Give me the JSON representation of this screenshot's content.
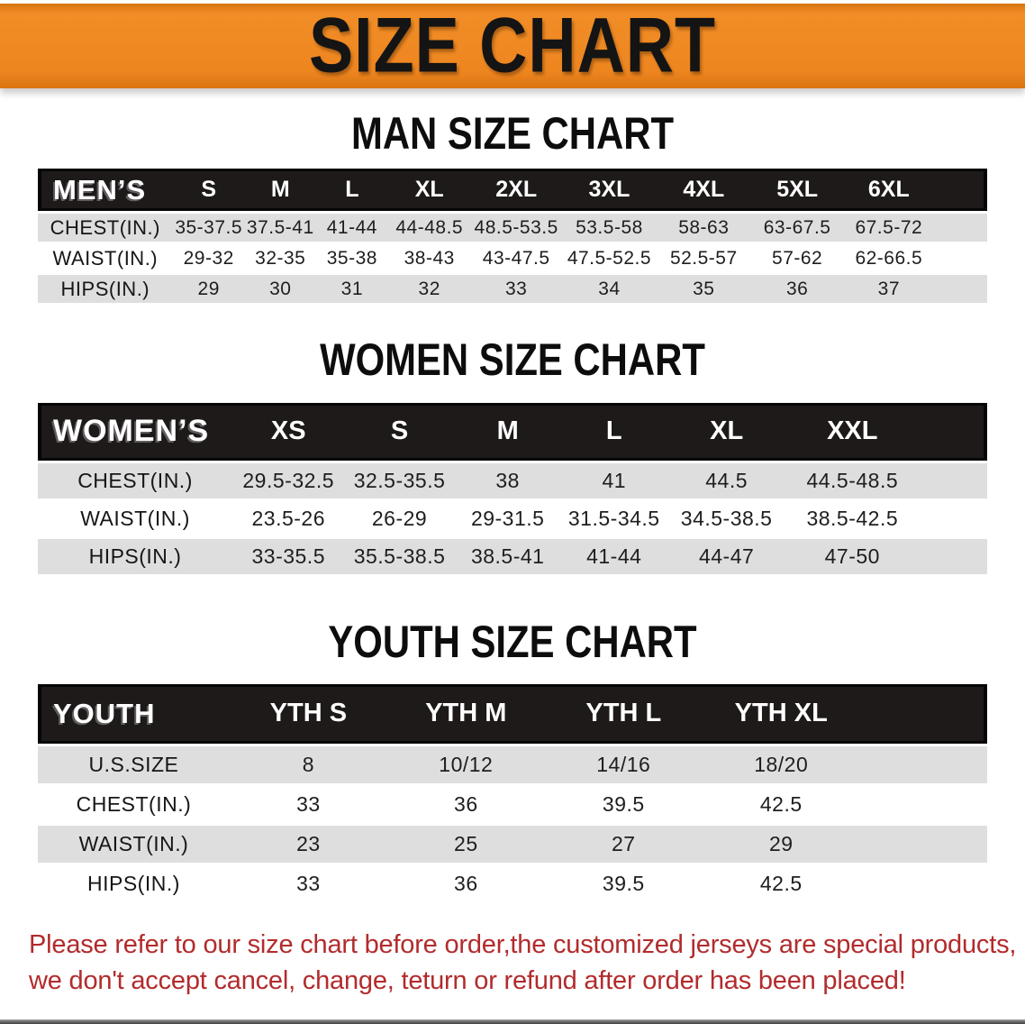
{
  "banner": {
    "title": "SIZE CHART"
  },
  "colors": {
    "banner_bg": "#EE8620",
    "header_bar": "#1D1A19",
    "row_gray": "#DEDEDE",
    "disclaimer_red": "#B22B2C"
  },
  "sections": [
    {
      "heading": "MAN SIZE CHART",
      "header_label": "MEN’S",
      "columns": [
        "S",
        "M",
        "L",
        "XL",
        "2XL",
        "3XL",
        "4XL",
        "5XL",
        "6XL"
      ],
      "rows": [
        {
          "label": "CHEST(IN.)",
          "values": [
            "35-37.5",
            "37.5-41",
            "41-44",
            "44-48.5",
            "48.5-53.5",
            "53.5-58",
            "58-63",
            "63-67.5",
            "67.5-72"
          ]
        },
        {
          "label": "WAIST(IN.)",
          "values": [
            "29-32",
            "32-35",
            "35-38",
            "38-43",
            "43-47.5",
            "47.5-52.5",
            "52.5-57",
            "57-62",
            "62-66.5"
          ]
        },
        {
          "label": "HIPS(IN.)",
          "values": [
            "29",
            "30",
            "31",
            "32",
            "33",
            "34",
            "35",
            "36",
            "37"
          ]
        }
      ]
    },
    {
      "heading": "WOMEN SIZE CHART",
      "header_label": "WOMEN’S",
      "columns": [
        "XS",
        "S",
        "M",
        "L",
        "XL",
        "XXL"
      ],
      "rows": [
        {
          "label": "CHEST(IN.)",
          "values": [
            "29.5-32.5",
            "32.5-35.5",
            "38",
            "41",
            "44.5",
            "44.5-48.5"
          ]
        },
        {
          "label": "WAIST(IN.)",
          "values": [
            "23.5-26",
            "26-29",
            "29-31.5",
            "31.5-34.5",
            "34.5-38.5",
            "38.5-42.5"
          ]
        },
        {
          "label": "HIPS(IN.)",
          "values": [
            "33-35.5",
            "35.5-38.5",
            "38.5-41",
            "41-44",
            "44-47",
            "47-50"
          ]
        }
      ]
    },
    {
      "heading": "YOUTH SIZE CHART",
      "header_label": "YOUTH",
      "columns": [
        "YTH S",
        "YTH M",
        "YTH L",
        "YTH XL"
      ],
      "rows": [
        {
          "label": "U.S.SIZE",
          "values": [
            "8",
            "10/12",
            "14/16",
            "18/20"
          ]
        },
        {
          "label": "CHEST(IN.)",
          "values": [
            "33",
            "36",
            "39.5",
            "42.5"
          ]
        },
        {
          "label": "WAIST(IN.)",
          "values": [
            "23",
            "25",
            "27",
            "29"
          ]
        },
        {
          "label": "HIPS(IN.)",
          "values": [
            "33",
            "36",
            "39.5",
            "42.5"
          ]
        }
      ]
    }
  ],
  "disclaimer": {
    "line1": "Please refer to our size chart before order,the customized jerseys are special products,",
    "line2": "we don't accept cancel, change, teturn or refund after order has been placed!"
  }
}
